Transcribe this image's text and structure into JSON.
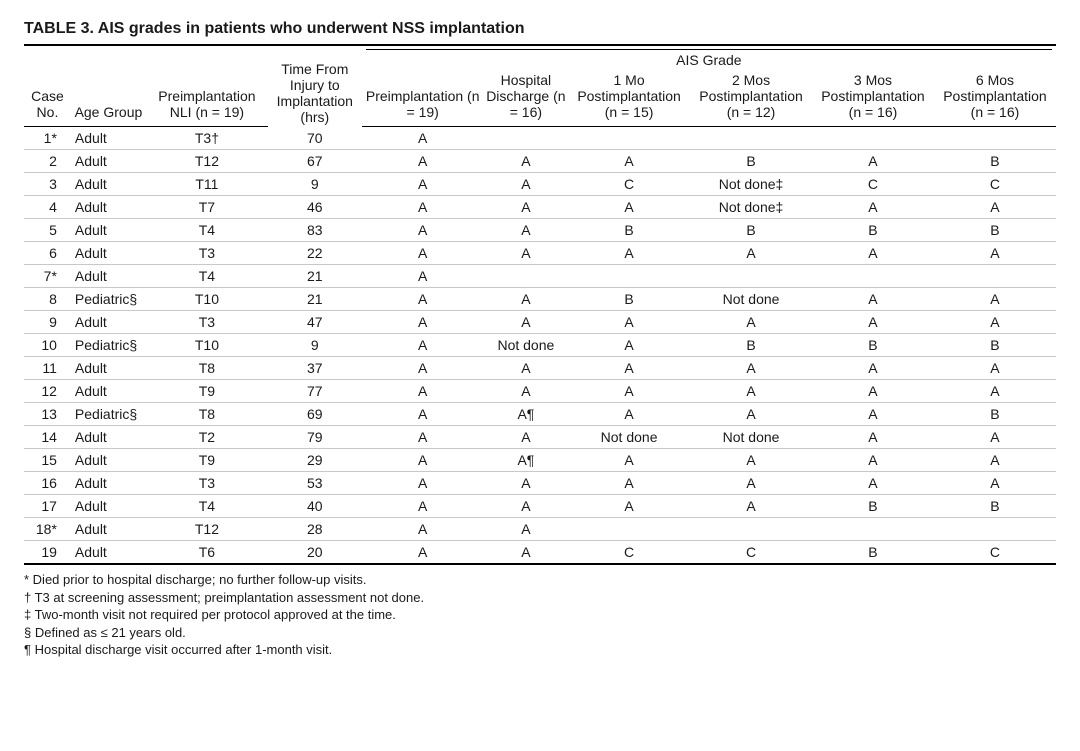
{
  "title": "TABLE 3. AIS grades in patients who underwent NSS implantation",
  "spanner": {
    "ais_grade": "AIS Grade"
  },
  "columns": {
    "case_no": "Case No.",
    "age_group": "Age Group",
    "nli": "Preimplantation NLI (n = 19)",
    "time_hrs": "Time From Injury to Implantation (hrs)",
    "preimpl": "Preimplantation (n = 19)",
    "discharge": "Hospital Discharge (n = 16)",
    "mo1": "1 Mo Postimplantation (n = 15)",
    "mo2": "2 Mos Postimplantation (n = 12)",
    "mo3": "3 Mos Postimplantation (n = 16)",
    "mo6": "6 Mos Postimplantation (n = 16)"
  },
  "rows": [
    {
      "case": "1*",
      "age": "Adult",
      "nli": "T3†",
      "time": "70",
      "pre": "A",
      "disch": "",
      "m1": "",
      "m2": "",
      "m3": "",
      "m6": ""
    },
    {
      "case": "2",
      "age": "Adult",
      "nli": "T12",
      "time": "67",
      "pre": "A",
      "disch": "A",
      "m1": "A",
      "m2": "B",
      "m3": "A",
      "m6": "B"
    },
    {
      "case": "3",
      "age": "Adult",
      "nli": "T11",
      "time": "9",
      "pre": "A",
      "disch": "A",
      "m1": "C",
      "m2": "Not done‡",
      "m3": "C",
      "m6": "C"
    },
    {
      "case": "4",
      "age": "Adult",
      "nli": "T7",
      "time": "46",
      "pre": "A",
      "disch": "A",
      "m1": "A",
      "m2": "Not done‡",
      "m3": "A",
      "m6": "A"
    },
    {
      "case": "5",
      "age": "Adult",
      "nli": "T4",
      "time": "83",
      "pre": "A",
      "disch": "A",
      "m1": "B",
      "m2": "B",
      "m3": "B",
      "m6": "B"
    },
    {
      "case": "6",
      "age": "Adult",
      "nli": "T3",
      "time": "22",
      "pre": "A",
      "disch": "A",
      "m1": "A",
      "m2": "A",
      "m3": "A",
      "m6": "A"
    },
    {
      "case": "7*",
      "age": "Adult",
      "nli": "T4",
      "time": "21",
      "pre": "A",
      "disch": "",
      "m1": "",
      "m2": "",
      "m3": "",
      "m6": ""
    },
    {
      "case": "8",
      "age": "Pediatric§",
      "nli": "T10",
      "time": "21",
      "pre": "A",
      "disch": "A",
      "m1": "B",
      "m2": "Not done",
      "m3": "A",
      "m6": "A"
    },
    {
      "case": "9",
      "age": "Adult",
      "nli": "T3",
      "time": "47",
      "pre": "A",
      "disch": "A",
      "m1": "A",
      "m2": "A",
      "m3": "A",
      "m6": "A"
    },
    {
      "case": "10",
      "age": "Pediatric§",
      "nli": "T10",
      "time": "9",
      "pre": "A",
      "disch": "Not done",
      "m1": "A",
      "m2": "B",
      "m3": "B",
      "m6": "B"
    },
    {
      "case": "11",
      "age": "Adult",
      "nli": "T8",
      "time": "37",
      "pre": "A",
      "disch": "A",
      "m1": "A",
      "m2": "A",
      "m3": "A",
      "m6": "A"
    },
    {
      "case": "12",
      "age": "Adult",
      "nli": "T9",
      "time": "77",
      "pre": "A",
      "disch": "A",
      "m1": "A",
      "m2": "A",
      "m3": "A",
      "m6": "A"
    },
    {
      "case": "13",
      "age": "Pediatric§",
      "nli": "T8",
      "time": "69",
      "pre": "A",
      "disch": "A¶",
      "m1": "A",
      "m2": "A",
      "m3": "A",
      "m6": "B"
    },
    {
      "case": "14",
      "age": "Adult",
      "nli": "T2",
      "time": "79",
      "pre": "A",
      "disch": "A",
      "m1": "Not done",
      "m2": "Not done",
      "m3": "A",
      "m6": "A"
    },
    {
      "case": "15",
      "age": "Adult",
      "nli": "T9",
      "time": "29",
      "pre": "A",
      "disch": "A¶",
      "m1": "A",
      "m2": "A",
      "m3": "A",
      "m6": "A"
    },
    {
      "case": "16",
      "age": "Adult",
      "nli": "T3",
      "time": "53",
      "pre": "A",
      "disch": "A",
      "m1": "A",
      "m2": "A",
      "m3": "A",
      "m6": "A"
    },
    {
      "case": "17",
      "age": "Adult",
      "nli": "T4",
      "time": "40",
      "pre": "A",
      "disch": "A",
      "m1": "A",
      "m2": "A",
      "m3": "B",
      "m6": "B"
    },
    {
      "case": "18*",
      "age": "Adult",
      "nli": "T12",
      "time": "28",
      "pre": "A",
      "disch": "A",
      "m1": "",
      "m2": "",
      "m3": "",
      "m6": ""
    },
    {
      "case": "19",
      "age": "Adult",
      "nli": "T6",
      "time": "20",
      "pre": "A",
      "disch": "A",
      "m1": "C",
      "m2": "C",
      "m3": "B",
      "m6": "C"
    }
  ],
  "footnotes": [
    "* Died prior to hospital discharge; no further follow-up visits.",
    "† T3 at screening assessment; preimplantation assessment not done.",
    "‡ Two-month visit not required per protocol approved at the time.",
    "§ Defined as ≤ 21 years old.",
    "¶ Hospital discharge visit occurred after 1-month visit."
  ],
  "style": {
    "type": "table",
    "background_color": "#ffffff",
    "text_color": "#1a1a1a",
    "heavy_rule_color": "#000000",
    "light_rule_color": "#c8c8c8",
    "title_fontsize_pt": 12,
    "body_fontsize_pt": 10.5,
    "footnote_fontsize_pt": 10,
    "font_family": "Arial, Helvetica, sans-serif",
    "column_widths_pct": [
      5,
      8,
      13,
      10,
      13,
      9,
      13,
      13,
      13,
      13
    ],
    "alignments": {
      "case_no": "right",
      "age_group": "left",
      "default": "center"
    }
  }
}
